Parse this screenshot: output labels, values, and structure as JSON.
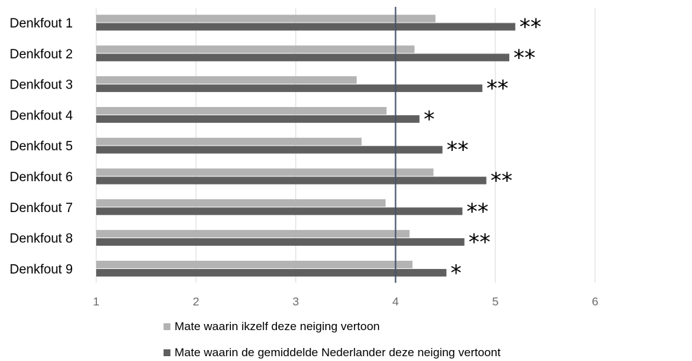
{
  "chart_data": {
    "type": "bar",
    "orientation": "horizontal",
    "categories": [
      "Denkfout 1",
      "Denkfout 2",
      "Denkfout 3",
      "Denkfout 4",
      "Denkfout 5",
      "Denkfout 6",
      "Denkfout 7",
      "Denkfout 8",
      "Denkfout 9"
    ],
    "series": [
      {
        "name": "Mate waarin ikzelf deze neiging vertoon",
        "color": "#b3b3b3",
        "values": [
          4.4,
          4.19,
          3.61,
          3.91,
          3.66,
          4.38,
          3.9,
          4.14,
          4.17
        ]
      },
      {
        "name": "Mate waarin de gemiddelde Nederlander deze neiging vertoont",
        "color": "#5f5f5f",
        "values": [
          5.2,
          5.14,
          4.87,
          4.24,
          4.47,
          4.91,
          4.67,
          4.69,
          4.51
        ]
      }
    ],
    "significance": [
      "**",
      "**",
      "**",
      "*",
      "**",
      "**",
      "**",
      "**",
      "*"
    ],
    "xlim": [
      1,
      7
    ],
    "xticks": [
      "1",
      "2",
      "3",
      "4",
      "5",
      "6"
    ],
    "reference_line": 4,
    "reference_line_color": "#44546a",
    "grid": true,
    "legend_position": "bottom",
    "title": "",
    "xlabel": "",
    "ylabel": ""
  }
}
